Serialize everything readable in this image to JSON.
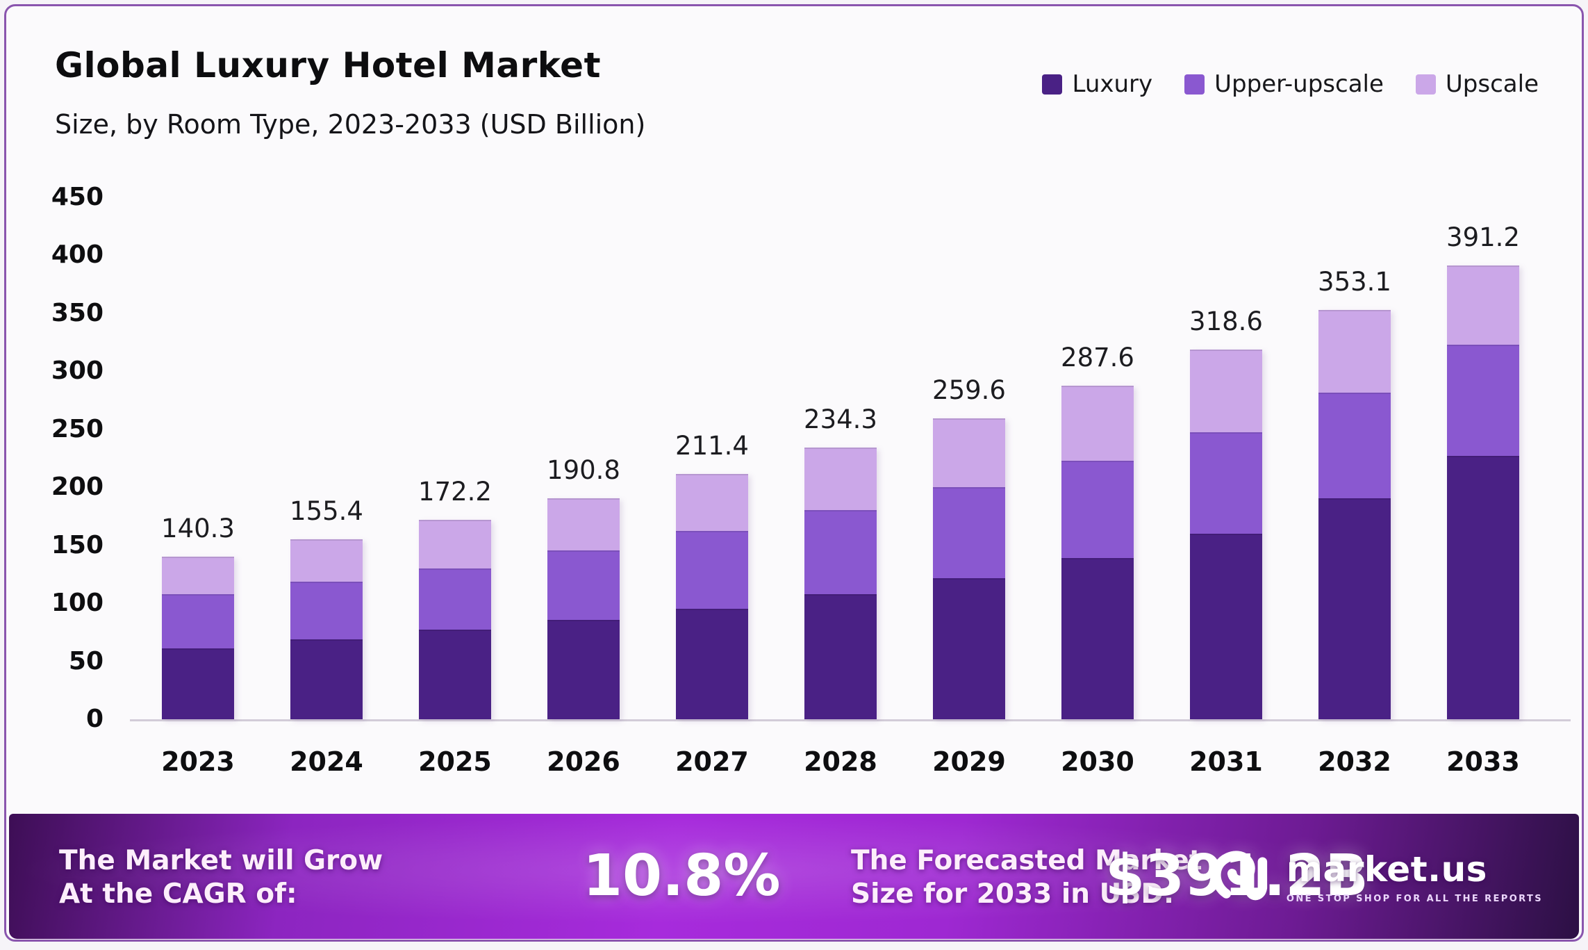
{
  "page": {
    "background": "#fbfafc",
    "border_color": "#8a55ae"
  },
  "header": {
    "title": "Global Luxury Hotel Market",
    "subtitle": "Size, by Room Type, 2023-2033 (USD Billion)"
  },
  "legend": {
    "items": [
      {
        "label": "Luxury",
        "color": "#4a2185"
      },
      {
        "label": "Upper-upscale",
        "color": "#8a58d0"
      },
      {
        "label": "Upscale",
        "color": "#cba7e8"
      }
    ]
  },
  "chart_data": {
    "type": "bar",
    "stacked": true,
    "title": "Global Luxury Hotel Market",
    "subtitle": "Size, by Room Type, 2023-2033 (USD Billion)",
    "unit": "USD Billion",
    "categories": [
      "2023",
      "2024",
      "2025",
      "2026",
      "2027",
      "2028",
      "2029",
      "2030",
      "2031",
      "2032",
      "2033"
    ],
    "series": [
      {
        "name": "Luxury",
        "color": "#4a2185",
        "values": [
          61.4,
          68.8,
          77.1,
          85.9,
          95.5,
          107.8,
          121.8,
          139.2,
          160.0,
          190.3,
          227.3
        ]
      },
      {
        "name": "Upper-upscale",
        "color": "#8a58d0",
        "values": [
          46.7,
          49.7,
          53.2,
          59.5,
          66.8,
          72.4,
          78.4,
          83.4,
          87.6,
          91.1,
          95.5
        ]
      },
      {
        "name": "Upscale",
        "color": "#cba7e8",
        "values": [
          32.2,
          36.9,
          41.9,
          45.4,
          49.1,
          54.1,
          59.4,
          65.0,
          71.0,
          71.7,
          68.4
        ]
      }
    ],
    "totals": [
      140.3,
      155.4,
      172.2,
      190.8,
      211.4,
      234.3,
      259.6,
      287.6,
      318.6,
      353.1,
      391.2
    ],
    "total_labels": [
      "140.3",
      "155.4",
      "172.2",
      "190.8",
      "211.4",
      "234.3",
      "259.6",
      "287.6",
      "318.6",
      "353.1",
      "391.2"
    ],
    "ylim": [
      0,
      450
    ],
    "yticks": [
      0,
      50,
      100,
      150,
      200,
      250,
      300,
      350,
      400,
      450
    ],
    "grid": false,
    "legend_position": "top-right"
  },
  "footer": {
    "cagr_text_line1": "The Market will Grow",
    "cagr_text_line2": "At the CAGR of:",
    "cagr_value": "10.8%",
    "forecast_text_line1": "The Forecasted Market",
    "forecast_text_line2": "Size for 2033 in USD:",
    "forecast_value": "$391.2B",
    "brand": {
      "name": "market.us",
      "tagline": "ONE STOP SHOP FOR ALL THE REPORTS"
    }
  }
}
